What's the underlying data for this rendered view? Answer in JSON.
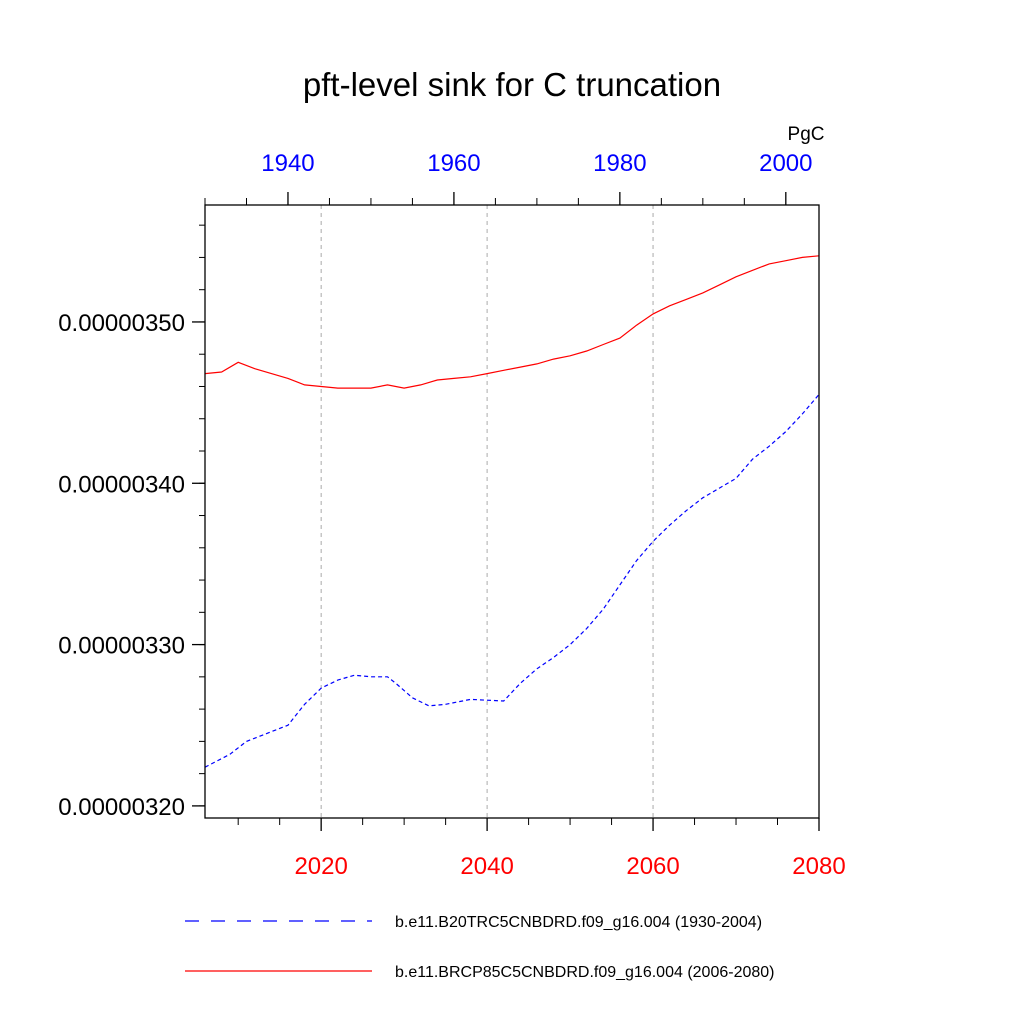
{
  "chart_data": {
    "type": "line",
    "title": "pft-level sink for C truncation",
    "units_label": "PgC",
    "left_axis_label": "",
    "grid": "vertical dotted lines at bottom-axis major ticks",
    "ylim": [
      3.1925e-06,
      3.5725e-06
    ],
    "y_ticks": [
      3.2e-06,
      3.3e-06,
      3.4e-06,
      3.5e-06
    ],
    "y_tick_labels": [
      "0.00000320",
      "0.00000330",
      "0.00000340",
      "0.00000350"
    ],
    "x_bottom": {
      "range": [
        2006,
        2080
      ],
      "ticks": [
        2020,
        2040,
        2060,
        2080
      ],
      "tick_labels": [
        "2020",
        "2040",
        "2060",
        "2080"
      ],
      "color": "#ff0000"
    },
    "x_top": {
      "range": [
        1930,
        2004
      ],
      "ticks": [
        1940,
        1960,
        1980,
        2000
      ],
      "tick_labels": [
        "1940",
        "1960",
        "1980",
        "2000"
      ],
      "color": "#0000ff"
    },
    "legend_position": "bottom",
    "series": [
      {
        "name": "b.e11.B20TRC5CNBDRD.f09_g16.004 (1930-2004)",
        "axis": "top",
        "color": "#0000ff",
        "style": "dashed",
        "x": [
          1930,
          1933,
          1935,
          1937,
          1940,
          1942,
          1944,
          1946,
          1948,
          1950,
          1952,
          1953,
          1955,
          1957,
          1959,
          1962,
          1966,
          1968,
          1970,
          1972,
          1974,
          1976,
          1978,
          1980,
          1982,
          1984,
          1986,
          1988,
          1990,
          1992,
          1994,
          1996,
          1998,
          2000,
          2002,
          2004
        ],
        "y": [
          3.224e-06,
          3.232e-06,
          3.24e-06,
          3.244e-06,
          3.25e-06,
          3.263e-06,
          3.273e-06,
          3.278e-06,
          3.281e-06,
          3.28e-06,
          3.28e-06,
          3.276e-06,
          3.267e-06,
          3.262e-06,
          3.263e-06,
          3.266e-06,
          3.265e-06,
          3.276e-06,
          3.285e-06,
          3.292e-06,
          3.3e-06,
          3.31e-06,
          3.322e-06,
          3.337e-06,
          3.352e-06,
          3.364e-06,
          3.374e-06,
          3.383e-06,
          3.391e-06,
          3.397e-06,
          3.403e-06,
          3.415e-06,
          3.423e-06,
          3.432e-06,
          3.443e-06,
          3.455e-06
        ]
      },
      {
        "name": "b.e11.BRCP85C5CNBDRD.f09_g16.004 (2006-2080)",
        "axis": "bottom",
        "color": "#ff0000",
        "style": "solid",
        "x": [
          2006,
          2008,
          2010,
          2012,
          2014,
          2016,
          2018,
          2020,
          2022,
          2024,
          2026,
          2028,
          2030,
          2032,
          2034,
          2036,
          2038,
          2040,
          2042,
          2044,
          2046,
          2048,
          2050,
          2052,
          2054,
          2056,
          2058,
          2060,
          2062,
          2064,
          2066,
          2068,
          2070,
          2072,
          2074,
          2076,
          2078,
          2080
        ],
        "y": [
          3.468e-06,
          3.469e-06,
          3.475e-06,
          3.471e-06,
          3.468e-06,
          3.465e-06,
          3.461e-06,
          3.46e-06,
          3.459e-06,
          3.459e-06,
          3.459e-06,
          3.461e-06,
          3.459e-06,
          3.461e-06,
          3.464e-06,
          3.465e-06,
          3.466e-06,
          3.468e-06,
          3.47e-06,
          3.472e-06,
          3.474e-06,
          3.477e-06,
          3.479e-06,
          3.482e-06,
          3.486e-06,
          3.49e-06,
          3.498e-06,
          3.505e-06,
          3.51e-06,
          3.514e-06,
          3.518e-06,
          3.523e-06,
          3.528e-06,
          3.532e-06,
          3.536e-06,
          3.538e-06,
          3.54e-06,
          3.541e-06
        ]
      }
    ]
  }
}
